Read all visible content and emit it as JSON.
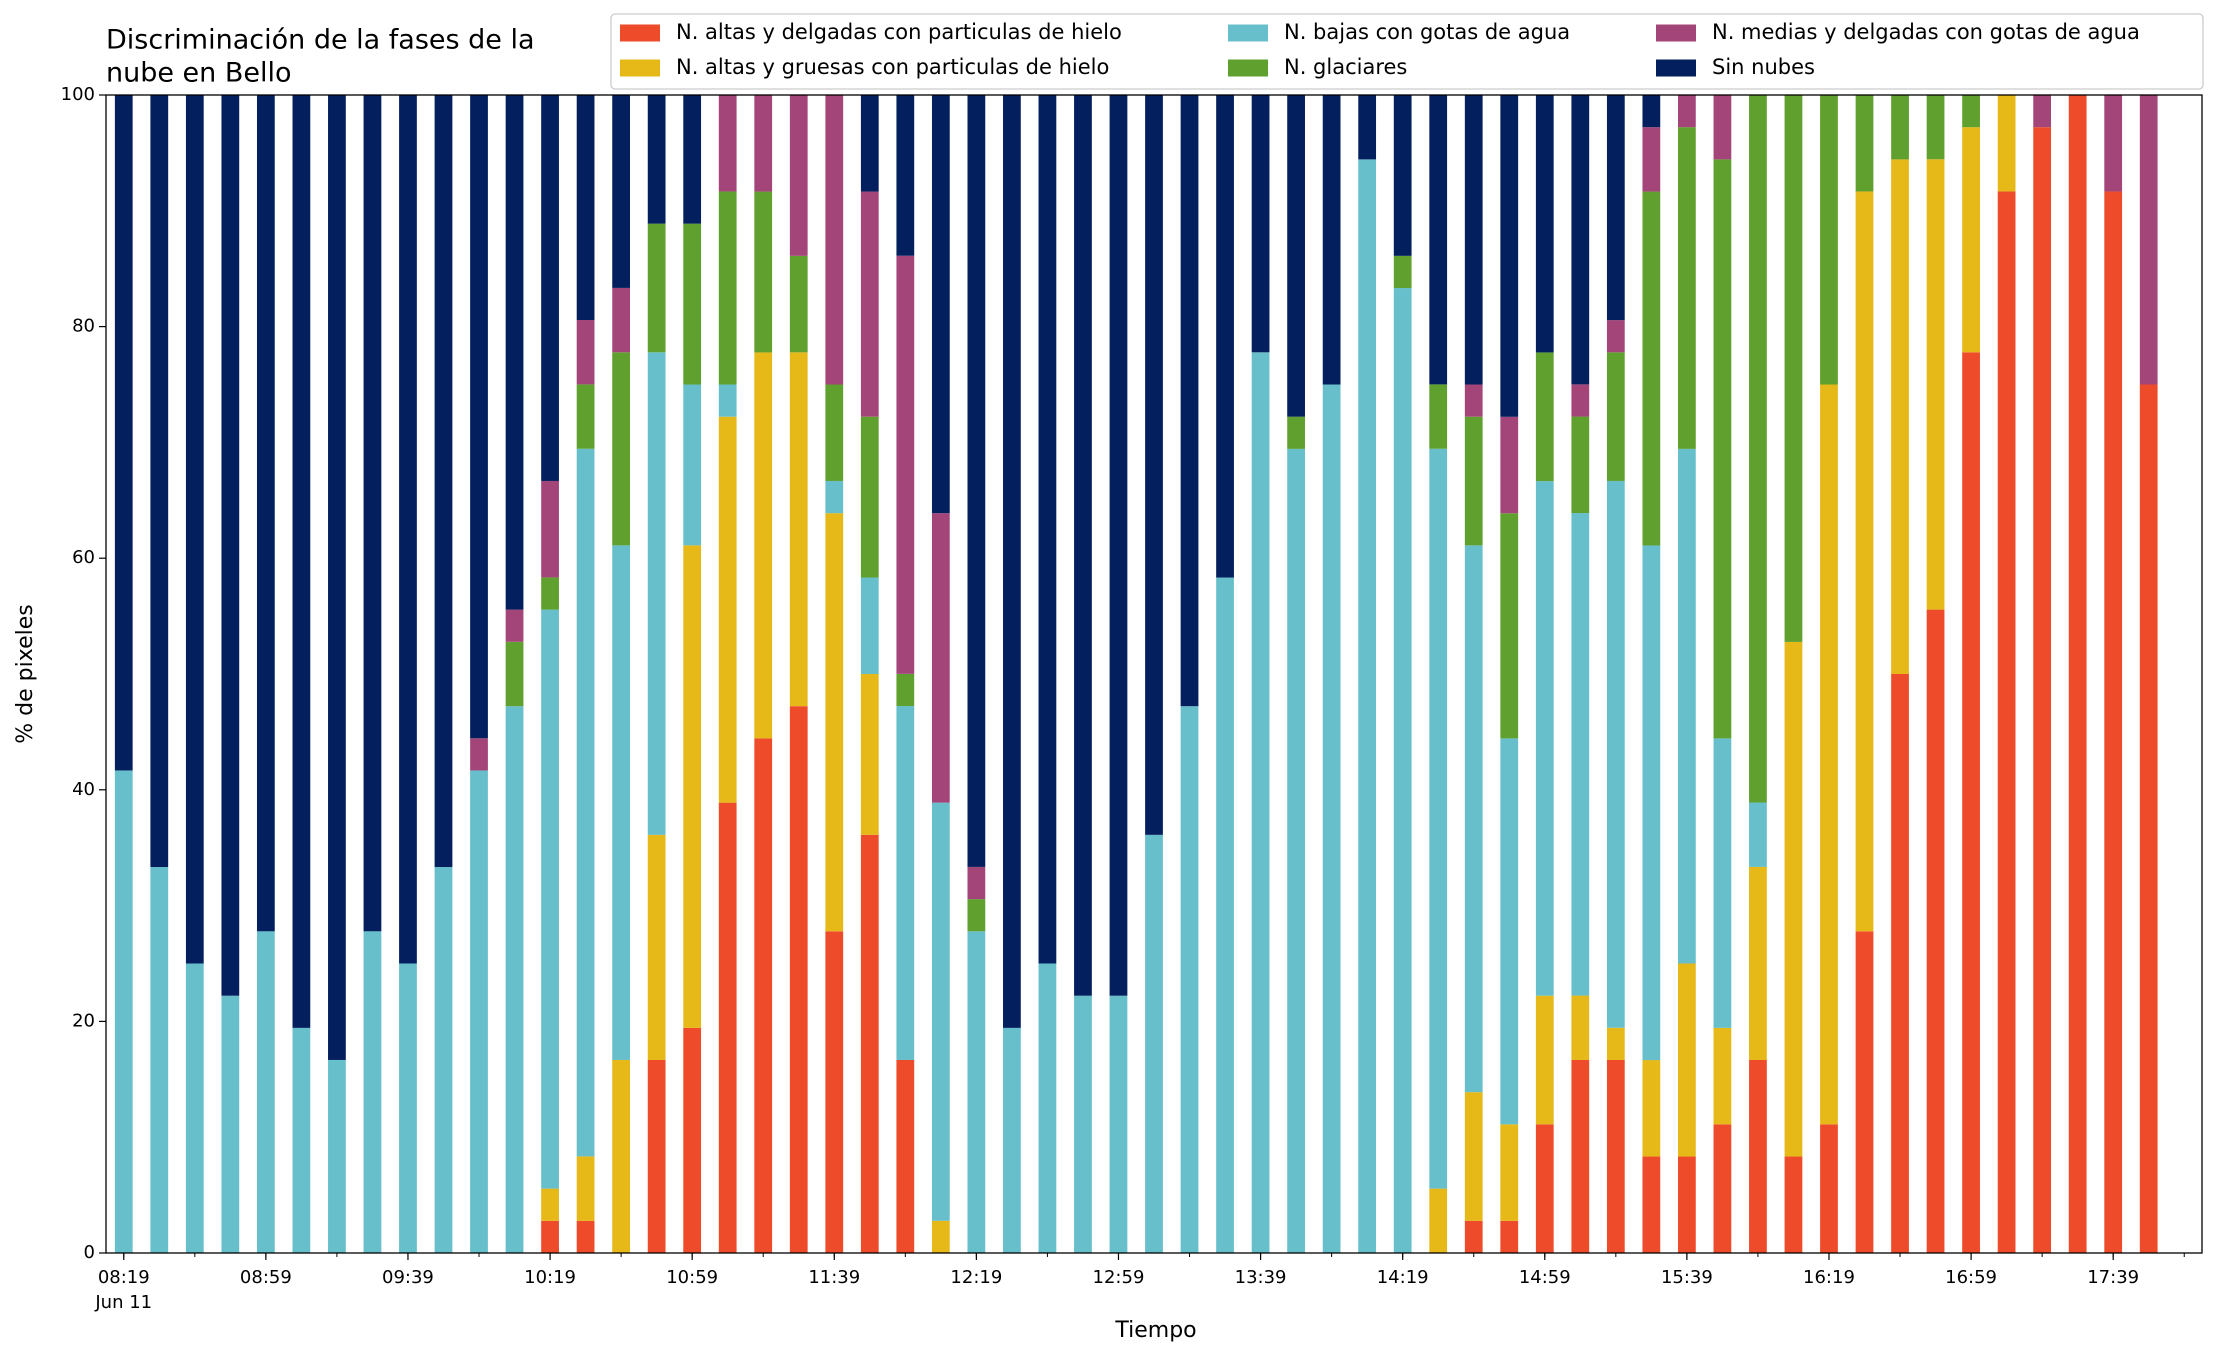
{
  "chart_data": {
    "type": "stacked_bar",
    "title": [
      "Discriminación de la fases de la",
      "nube en Bello"
    ],
    "x_label": "Tiempo",
    "y_label": "% de pixeles",
    "date_label": "Jun 11",
    "categories": [
      "08:19",
      null,
      null,
      null,
      "08:59",
      null,
      null,
      null,
      "09:39",
      null,
      null,
      null,
      "10:19",
      null,
      null,
      null,
      "10:59",
      null,
      null,
      null,
      "11:39",
      null,
      null,
      null,
      "12:19",
      null,
      null,
      null,
      "12:59",
      null,
      null,
      null,
      "13:39",
      null,
      null,
      null,
      "14:19",
      null,
      null,
      null,
      "14:59",
      null,
      null,
      null,
      "15:39",
      null,
      null,
      null,
      "16:19",
      null,
      null,
      null,
      "16:59",
      null,
      null,
      null,
      "17:39",
      null
    ],
    "ylim": [
      0,
      100
    ],
    "yticks": [
      0,
      20,
      40,
      60,
      80,
      100
    ],
    "series": [
      {
        "name": "N. altas y delgadas con particulas de hielo",
        "color": "#ee4b2b",
        "values": [
          0,
          0,
          0,
          0,
          0,
          0,
          0,
          0,
          0,
          0,
          0,
          0,
          2.78,
          2.78,
          0,
          16.67,
          19.44,
          38.89,
          44.44,
          47.22,
          27.78,
          36.11,
          16.67,
          0,
          0,
          0,
          0,
          0,
          0,
          0,
          0,
          0,
          0,
          0,
          0,
          0,
          0,
          0,
          2.78,
          2.78,
          11.11,
          16.67,
          16.67,
          8.33,
          8.33,
          11.11,
          16.67,
          8.33,
          11.11,
          27.78,
          50,
          55.56,
          77.78,
          91.67,
          97.22,
          100,
          91.67,
          75
        ]
      },
      {
        "name": "N. altas y gruesas con particulas de hielo",
        "color": "#e6b818",
        "values": [
          0,
          0,
          0,
          0,
          0,
          0,
          0,
          0,
          0,
          0,
          0,
          0,
          2.78,
          5.56,
          16.67,
          19.44,
          41.67,
          33.33,
          33.33,
          30.56,
          36.11,
          13.89,
          0,
          2.78,
          0,
          0,
          0,
          0,
          0,
          0,
          0,
          0,
          0,
          0,
          0,
          0,
          0,
          5.56,
          11.11,
          8.33,
          11.11,
          5.56,
          2.78,
          8.33,
          16.67,
          8.33,
          16.67,
          44.44,
          63.89,
          63.89,
          44.44,
          38.89,
          19.44,
          8.33,
          0,
          0,
          0,
          0
        ]
      },
      {
        "name": "N. bajas con gotas de agua",
        "color": "#67bfcb",
        "values": [
          41.67,
          33.33,
          25,
          22.22,
          27.78,
          19.44,
          16.67,
          27.78,
          25,
          33.33,
          41.67,
          47.22,
          50,
          61.11,
          44.44,
          41.67,
          13.89,
          2.78,
          0,
          0,
          2.78,
          8.33,
          30.56,
          36.11,
          27.78,
          19.44,
          25,
          22.22,
          22.22,
          36.11,
          47.22,
          58.33,
          77.78,
          69.44,
          75,
          94.44,
          83.33,
          63.89,
          47.22,
          33.33,
          44.44,
          41.67,
          47.22,
          44.44,
          44.44,
          25,
          5.56,
          0,
          0,
          0,
          0,
          0,
          0,
          0,
          0,
          0,
          0,
          0
        ]
      },
      {
        "name": "N. glaciares",
        "color": "#5fa02e",
        "values": [
          0,
          0,
          0,
          0,
          0,
          0,
          0,
          0,
          0,
          0,
          0,
          5.56,
          2.78,
          5.56,
          16.67,
          11.11,
          13.89,
          16.67,
          13.89,
          8.33,
          8.33,
          13.89,
          2.78,
          0,
          2.78,
          0,
          0,
          0,
          0,
          0,
          0,
          0,
          0,
          2.78,
          0,
          0,
          2.78,
          5.56,
          11.11,
          19.44,
          11.11,
          8.33,
          11.11,
          30.56,
          27.78,
          50,
          61.11,
          47.22,
          25,
          8.33,
          5.56,
          5.56,
          2.78,
          0,
          0,
          0,
          0,
          0
        ]
      },
      {
        "name": "N. medias y delgadas con gotas de agua",
        "color": "#a4457a",
        "values": [
          0,
          0,
          0,
          0,
          0,
          0,
          0,
          0,
          0,
          0,
          2.78,
          2.78,
          8.33,
          5.56,
          5.56,
          0,
          0,
          8.33,
          8.33,
          13.89,
          25,
          19.44,
          36.11,
          25,
          2.78,
          0,
          0,
          0,
          0,
          0,
          0,
          0,
          0,
          0,
          0,
          0,
          0,
          0,
          2.78,
          8.33,
          0,
          2.78,
          2.78,
          5.56,
          2.78,
          5.56,
          0,
          0,
          0,
          0,
          0,
          0,
          0,
          0,
          2.78,
          0,
          8.33,
          25
        ]
      },
      {
        "name": "Sin nubes",
        "color": "#031f5e",
        "values": [
          58.33,
          66.67,
          75,
          77.78,
          72.22,
          80.56,
          83.33,
          72.22,
          75,
          66.67,
          55.56,
          44.44,
          33.33,
          19.44,
          16.67,
          11.11,
          11.11,
          0,
          0,
          0,
          0,
          8.33,
          13.89,
          36.11,
          66.67,
          80.56,
          75,
          77.78,
          77.78,
          63.89,
          52.78,
          41.67,
          22.22,
          27.78,
          25,
          5.56,
          13.89,
          25,
          25,
          27.78,
          22.22,
          25,
          19.44,
          2.78,
          0,
          0,
          0,
          0,
          0,
          0,
          0,
          0,
          0,
          0,
          0,
          0,
          0,
          0
        ]
      }
    ]
  }
}
